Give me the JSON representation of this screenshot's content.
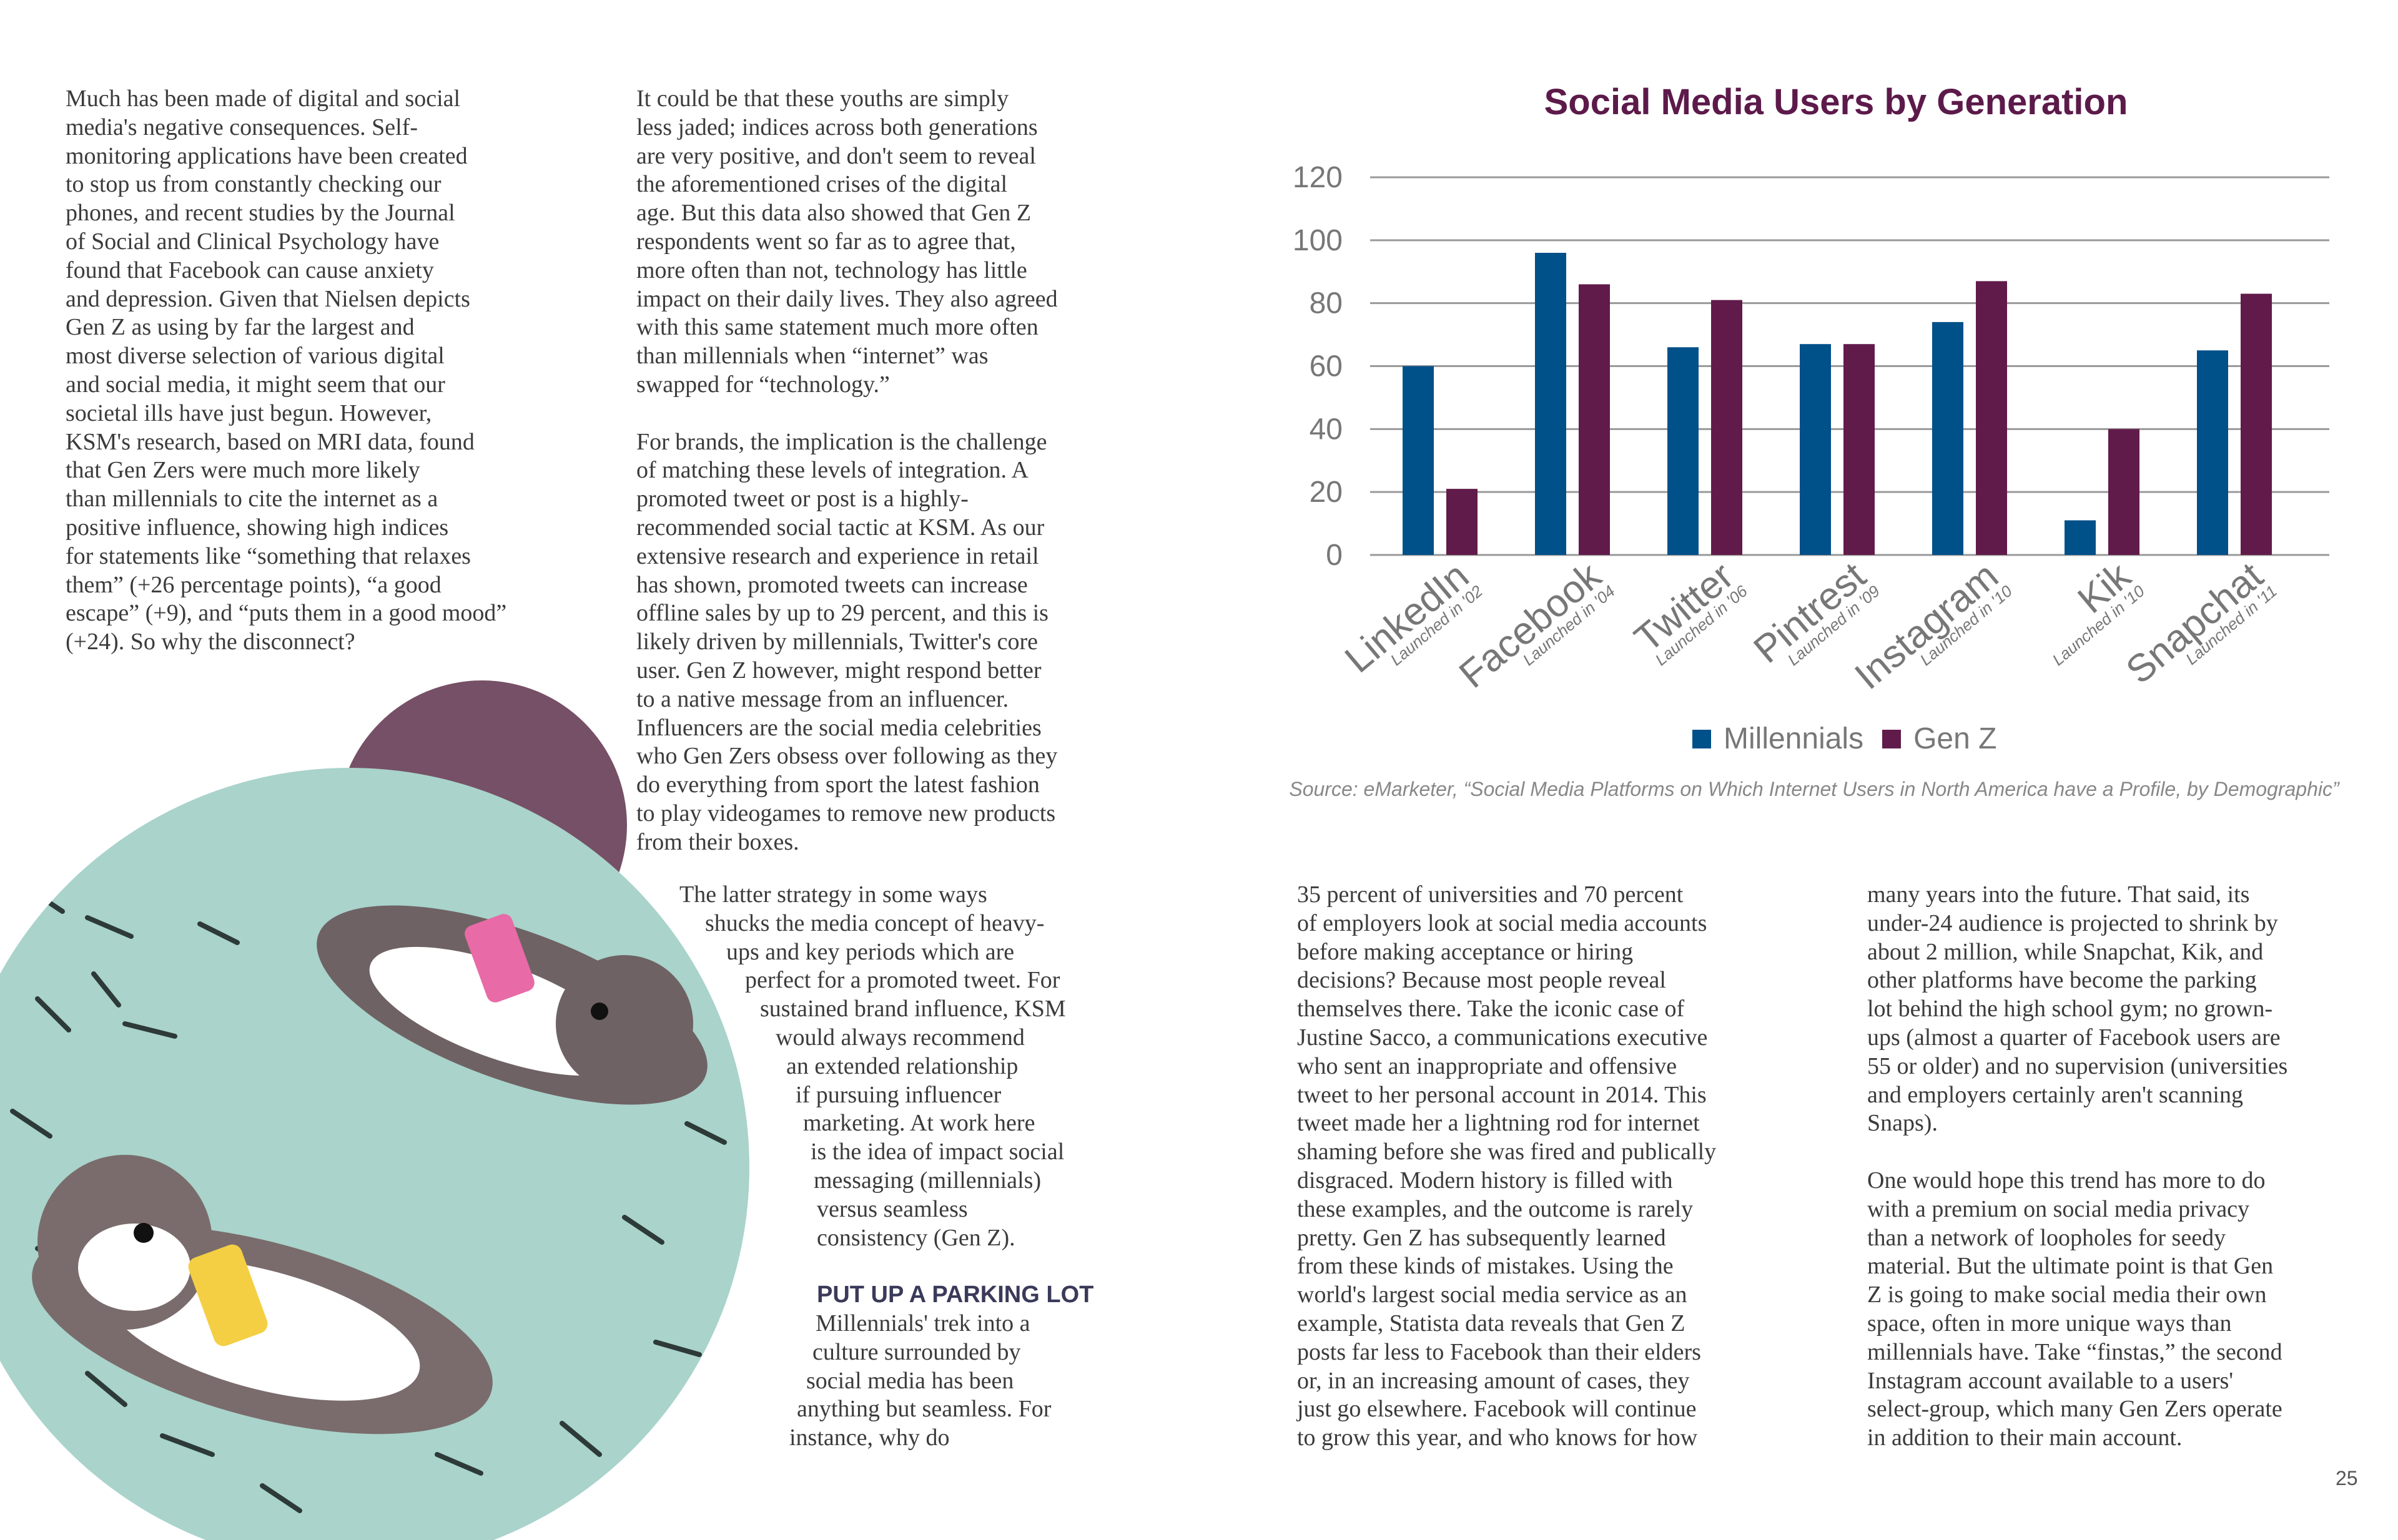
{
  "columns": [
    {
      "lines": [
        "Much has been made of digital and social",
        "media's negative consequences. Self-",
        "monitoring applications have been created",
        "to stop us from constantly checking our",
        "phones, and recent studies by the Journal",
        "of Social and Clinical Psychology have",
        "found that Facebook can cause anxiety",
        "and depression. Given that Nielsen depicts",
        "Gen Z as using by far the largest and",
        "most diverse selection of various digital",
        "and social media, it might seem that our",
        "societal ills have just begun. However,",
        "KSM's research, based on MRI data, found",
        "that Gen Zers were much more likely",
        "than millennials to cite the internet as a",
        "positive influence, showing high indices",
        "for statements like “something that relaxes",
        "them” (+26 percentage points), “a good",
        "escape” (+9), and “puts them in a good mood”",
        "(+24). So why the disconnect?"
      ]
    },
    {
      "lines": [
        "It could be that these youths are simply",
        "less jaded; indices across both generations",
        "are very positive, and don't seem to reveal",
        "the aforementioned crises of the digital",
        "age. But this data also showed that Gen Z",
        "respondents went so far as to agree that,",
        "more often than not, technology has little",
        "impact on their daily lives. They also agreed",
        "with this same statement much more often",
        "than millennials when “internet” was",
        "swapped for “technology.”",
        "",
        "For brands, the implication is the challenge",
        "of matching these levels of integration. A",
        "promoted tweet or post is a highly-",
        "recommended social tactic at KSM. As our",
        "extensive research and experience in retail",
        "has shown, promoted tweets can increase",
        "offline sales by up to 29 percent, and this is",
        "likely driven by millennials, Twitter's core",
        "user. Gen Z however, might respond better",
        "to a native message from an influencer.",
        "Influencers are the social media celebrities",
        "who Gen Zers obsess over following as they",
        "do everything from sport the latest fashion",
        "to play videogames to remove new products",
        "from their boxes."
      ]
    },
    {
      "lines": [
        "The latter strategy in some ways",
        "shucks the media concept of heavy-",
        "ups and key periods which are",
        "perfect for a promoted tweet. For",
        "sustained brand influence, KSM",
        "would always recommend",
        "an extended relationship",
        "if pursuing influencer",
        "marketing.  At work here",
        "is the idea of impact social",
        "messaging (millennials)",
        "versus seamless",
        "consistency (Gen Z).",
        "",
        "PUT UP A PARKING LOT",
        "Millennials' trek into a",
        "culture surrounded by",
        "social media has been",
        "anything but seamless. For",
        "instance, why do"
      ]
    },
    {
      "lines": [
        "35 percent of universities and 70 percent",
        "of employers look at social media accounts",
        "before making acceptance or hiring",
        "decisions? Because most people reveal",
        "themselves there. Take the iconic case of",
        "Justine Sacco, a communications executive",
        "who sent an inappropriate and offensive",
        "tweet to her personal account in 2014. This",
        "tweet made her a lightning rod for internet",
        "shaming before she was fired and publically",
        "disgraced. Modern history is filled with",
        "these examples, and the outcome is rarely",
        "pretty. Gen Z has subsequently learned",
        "from these kinds of mistakes. Using the",
        "world's largest social media service as an",
        "example, Statista data reveals that Gen Z",
        "posts far less to Facebook than their elders",
        "or, in an increasing amount of cases, they",
        "just go elsewhere. Facebook will continue",
        "to grow this year, and who knows for how"
      ]
    },
    {
      "lines": [
        "many years into the future. That said, its",
        "under-24 audience is projected to shrink by",
        "about 2 million, while Snapchat, Kik, and",
        "other platforms have become the parking",
        "lot behind the high school gym; no grown-",
        "ups (almost a quarter of Facebook users are",
        "55 or older) and no supervision (universities",
        "and employers certainly aren't scanning",
        "Snaps).",
        "",
        "One would hope this trend has more to do",
        "with a premium on social media privacy",
        "than a network of loopholes for seedy",
        "material. But the ultimate point is that Gen",
        "Z is going to make social media their own",
        "space, often in more unique ways than",
        "millennials have. Take “finstas,” the second",
        "Instagram account available to a users'",
        "select-group,  which many Gen Zers operate",
        "in addition to their main account."
      ]
    }
  ],
  "chart_data": {
    "type": "bar",
    "title": "Social Media Users by Generation",
    "categories": [
      "LinkedIn",
      "Facebook",
      "Twitter",
      "Pintrest",
      "Instagram",
      "Kik",
      "Snapchat"
    ],
    "sublabels": [
      "Launched in '02",
      "Launched in '04",
      "Launched in '06",
      "Launched in '09",
      "Launched in '10",
      "Launched in '10",
      "Launched in '11"
    ],
    "series": [
      {
        "name": "Millennials",
        "color": "#00508a",
        "values": [
          60,
          96,
          66,
          67,
          74,
          11,
          65
        ]
      },
      {
        "name": "Gen Z",
        "color": "#611b4a",
        "values": [
          21,
          86,
          81,
          67,
          87,
          40,
          83
        ]
      }
    ],
    "yticks": [
      "0",
      "20",
      "40",
      "60",
      "80",
      "100",
      "120"
    ],
    "ylim": [
      0,
      120
    ],
    "grid": true,
    "legend": "bottom-center",
    "xlabel": "",
    "ylabel": ""
  },
  "source": "Source: eMarketer, “Social Media Platforms on Which Internet Users in North America have a Profile, by Demographic”",
  "page_number": "25"
}
